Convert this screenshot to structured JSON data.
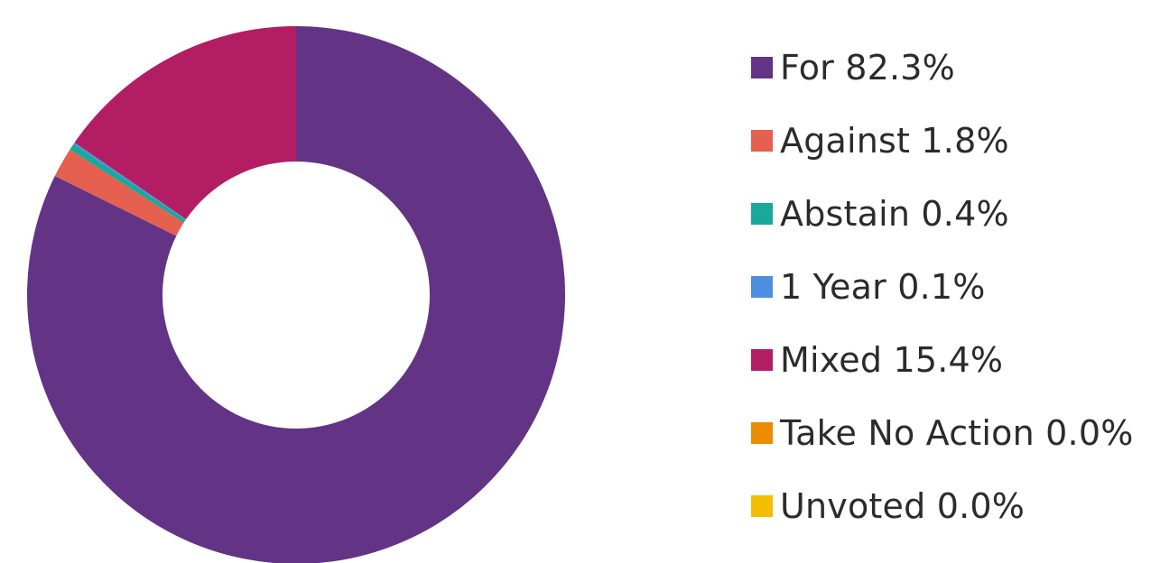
{
  "chart_data": {
    "type": "pie",
    "variant": "donut",
    "grid": false,
    "legend_position": "right",
    "slices": [
      {
        "label": "For",
        "value": 82.3,
        "color": "#633386"
      },
      {
        "label": "Against",
        "value": 1.8,
        "color": "#E5604F"
      },
      {
        "label": "Abstain",
        "value": 0.4,
        "color": "#1AA89C"
      },
      {
        "label": "1 Year",
        "value": 0.1,
        "color": "#4D8FDE"
      },
      {
        "label": "Mixed",
        "value": 15.4,
        "color": "#B31D63"
      },
      {
        "label": "Take No Action",
        "value": 0.0,
        "color": "#EB8C00"
      },
      {
        "label": "Unvoted",
        "value": 0.0,
        "color": "#F5BD00"
      }
    ]
  },
  "legend": [
    {
      "text": "For 82.3%",
      "color": "#633386"
    },
    {
      "text": "Against 1.8%",
      "color": "#E5604F"
    },
    {
      "text": "Abstain 0.4%",
      "color": "#1AA89C"
    },
    {
      "text": "1 Year 0.1%",
      "color": "#4D8FDE"
    },
    {
      "text": "Mixed 15.4%",
      "color": "#B31D63"
    },
    {
      "text": "Take No Action 0.0%",
      "color": "#EB8C00"
    },
    {
      "text": "Unvoted 0.0%",
      "color": "#F5BD00"
    }
  ]
}
